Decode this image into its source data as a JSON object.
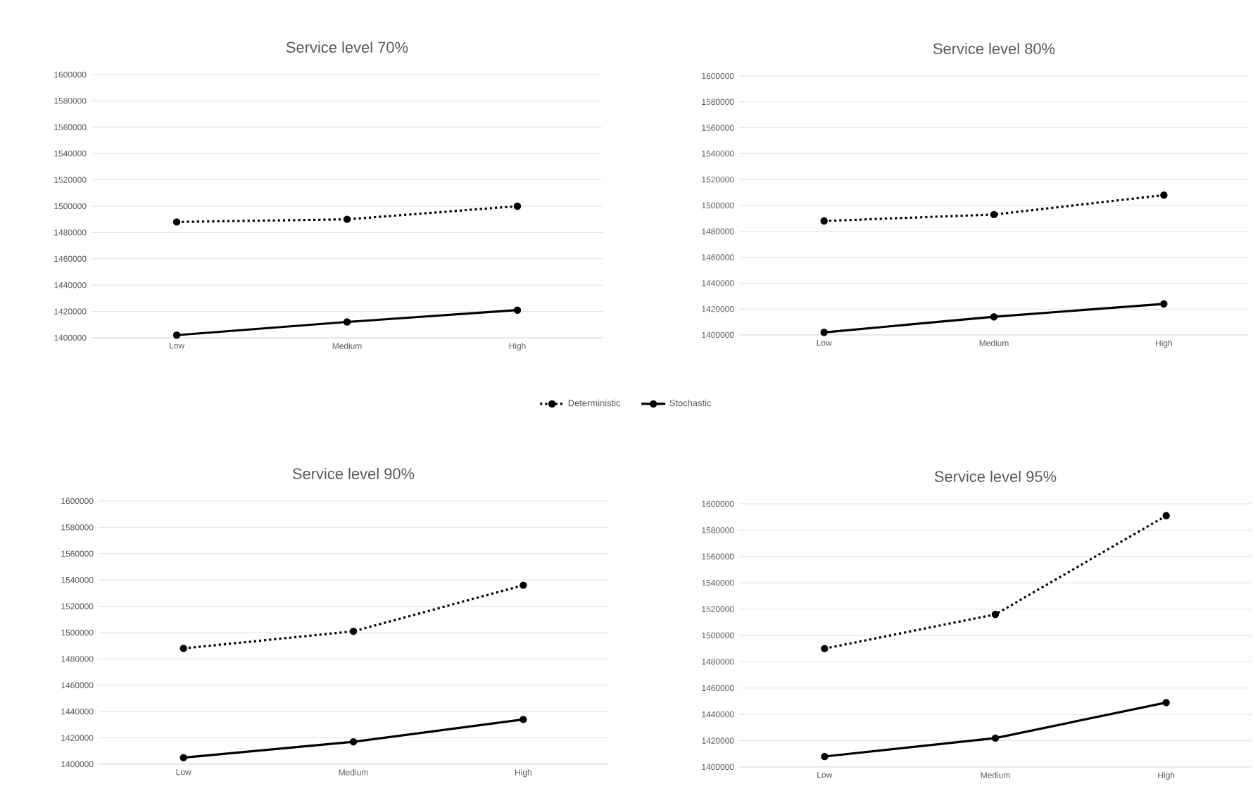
{
  "chart_data": [
    {
      "type": "line",
      "title": "Service level 70%",
      "categories": [
        "Low",
        "Medium",
        "High"
      ],
      "ylim": [
        1400000,
        1600000
      ],
      "yticks": [
        1400000,
        1420000,
        1440000,
        1460000,
        1480000,
        1500000,
        1520000,
        1540000,
        1560000,
        1580000,
        1600000
      ],
      "grid": "y",
      "marker": "circle",
      "legend": "bottom",
      "series": [
        {
          "name": "Deterministic",
          "color": "#000000",
          "line_style": "dotted",
          "values": [
            1488000,
            1490000,
            1500000
          ]
        },
        {
          "name": "Stochastic",
          "color": "#000000",
          "line_style": "solid",
          "values": [
            1402000,
            1412000,
            1421000
          ]
        }
      ]
    },
    {
      "type": "line",
      "title": "Service level 80%",
      "categories": [
        "Low",
        "Medium",
        "High"
      ],
      "ylim": [
        1400000,
        1600000
      ],
      "yticks": [
        1400000,
        1420000,
        1440000,
        1460000,
        1480000,
        1500000,
        1520000,
        1540000,
        1560000,
        1580000,
        1600000
      ],
      "grid": "y",
      "marker": "circle",
      "series": [
        {
          "color": "#000000",
          "line_style": "dotted",
          "values": [
            1488000,
            1493000,
            1508000
          ]
        },
        {
          "color": "#000000",
          "line_style": "solid",
          "values": [
            1402000,
            1414000,
            1424000
          ]
        }
      ]
    },
    {
      "type": "line",
      "title": "Service level 90%",
      "categories": [
        "Low",
        "Medium",
        "High"
      ],
      "ylim": [
        1400000,
        1600000
      ],
      "yticks": [
        1400000,
        1420000,
        1440000,
        1460000,
        1480000,
        1500000,
        1520000,
        1540000,
        1560000,
        1580000,
        1600000
      ],
      "grid": "y",
      "marker": "circle",
      "series": [
        {
          "color": "#000000",
          "line_style": "dotted",
          "values": [
            1488000,
            1501000,
            1536000
          ]
        },
        {
          "color": "#000000",
          "line_style": "solid",
          "values": [
            1405000,
            1417000,
            1434000
          ]
        }
      ]
    },
    {
      "type": "line",
      "title": "Service level 95%",
      "categories": [
        "Low",
        "Medium",
        "High"
      ],
      "ylim": [
        1400000,
        1600000
      ],
      "yticks": [
        1400000,
        1420000,
        1440000,
        1460000,
        1480000,
        1500000,
        1520000,
        1540000,
        1560000,
        1580000,
        1600000
      ],
      "grid": "y",
      "marker": "circle",
      "series": [
        {
          "color": "#000000",
          "line_style": "dotted",
          "values": [
            1490000,
            1516000,
            1591000
          ]
        },
        {
          "color": "#000000",
          "line_style": "solid",
          "values": [
            1408000,
            1422000,
            1449000
          ]
        }
      ]
    }
  ]
}
